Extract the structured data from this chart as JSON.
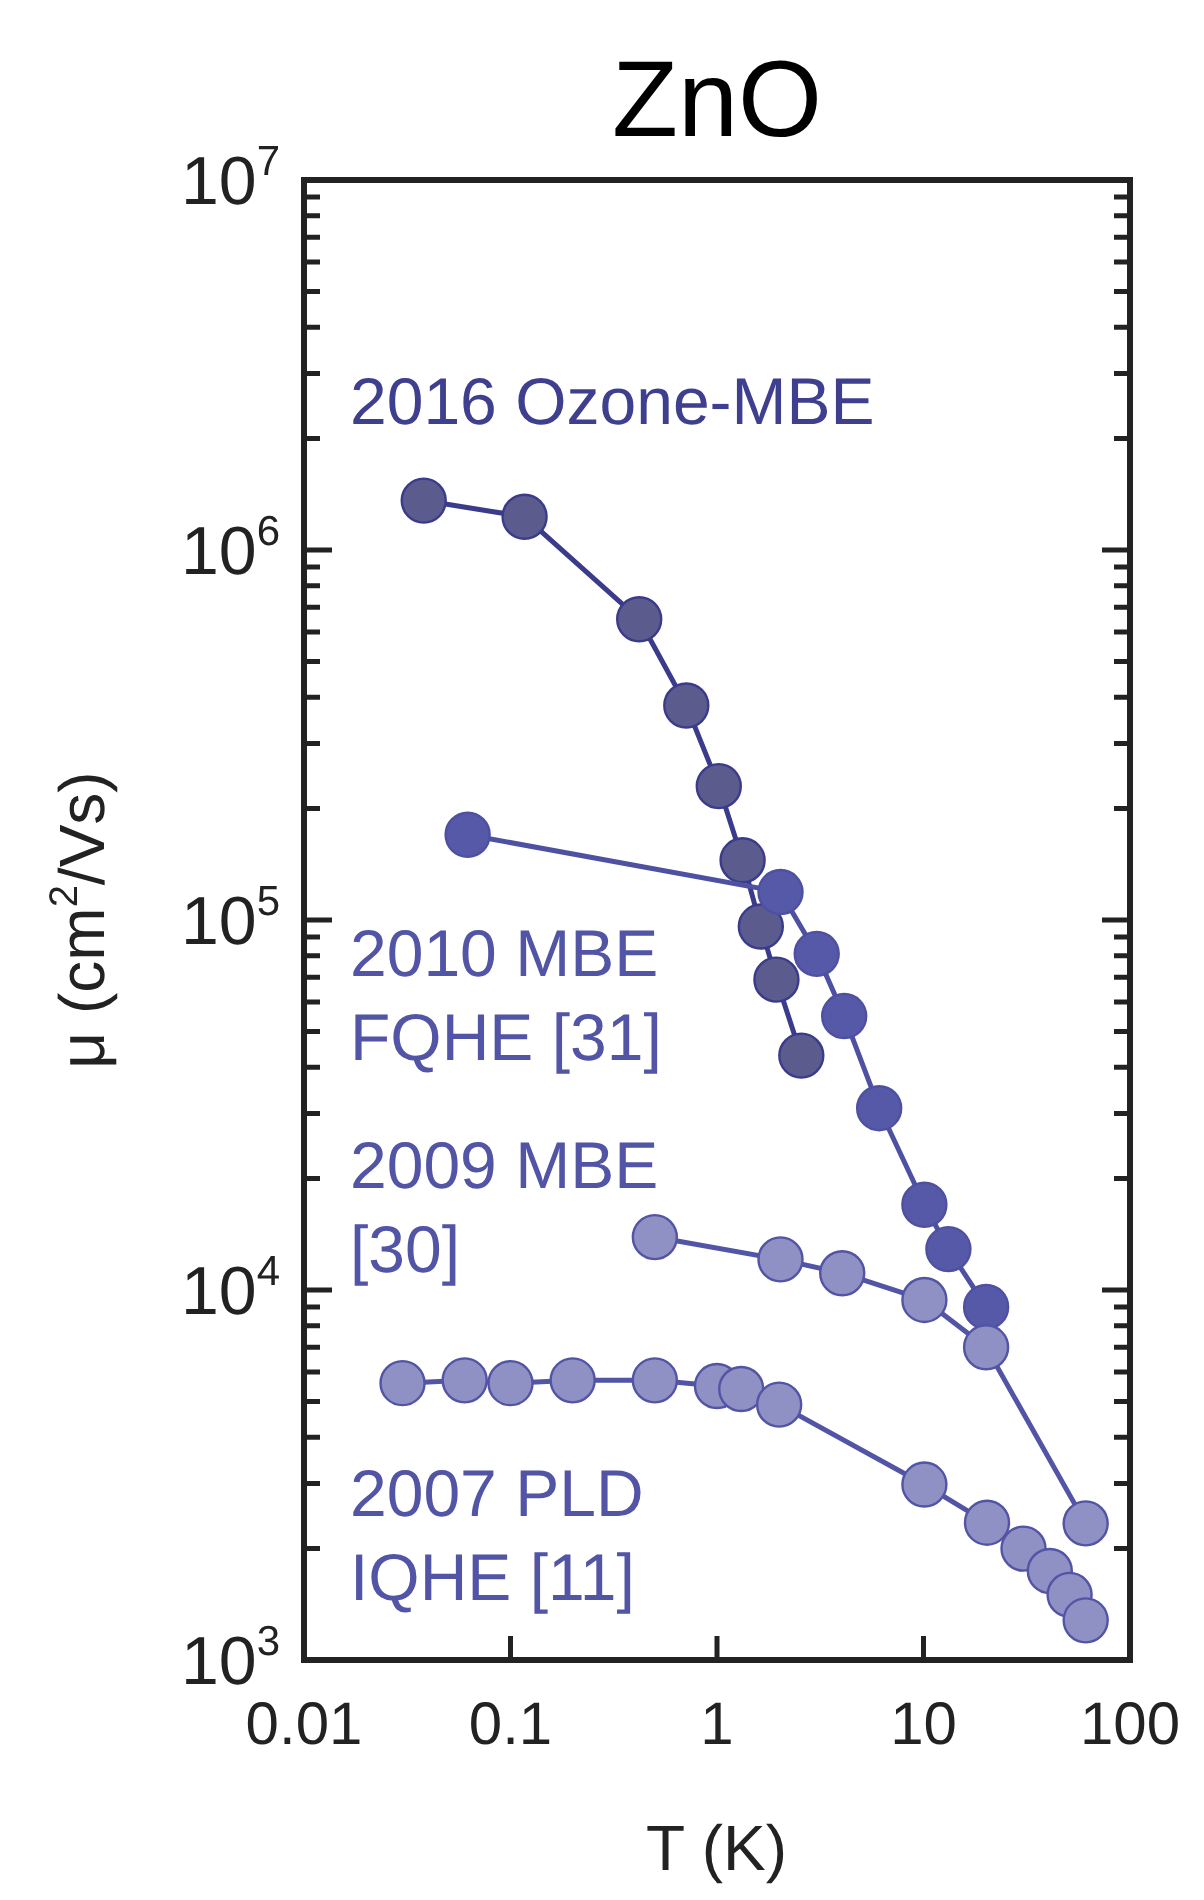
{
  "chart_data": {
    "type": "line",
    "title": "ZnO",
    "xlabel": "T (K)",
    "ylabel": "μ (cm$^{2}$/Vs)",
    "log": "xy",
    "legend": false,
    "grid": false,
    "marker": "circle",
    "line_style": "solid",
    "xlim": [
      0.01,
      100
    ],
    "xticks": [
      0.01,
      0.1,
      1,
      10,
      100
    ],
    "ylim": [
      1000,
      10000000
    ],
    "yticks": [
      {
        "value": 1000,
        "label": "10$^{3}$"
      },
      {
        "value": 2000,
        "label": null
      },
      {
        "value": 3000,
        "label": null
      },
      {
        "value": 4000,
        "label": null
      },
      {
        "value": 5000,
        "label": null
      },
      {
        "value": 6000,
        "label": null
      },
      {
        "value": 7000,
        "label": null
      },
      {
        "value": 8000,
        "label": null
      },
      {
        "value": 9000,
        "label": null
      },
      {
        "value": 10000,
        "label": "10$^{4}$"
      },
      {
        "value": 20000,
        "label": null
      },
      {
        "value": 30000,
        "label": null
      },
      {
        "value": 40000,
        "label": null
      },
      {
        "value": 50000,
        "label": null
      },
      {
        "value": 60000,
        "label": null
      },
      {
        "value": 70000,
        "label": null
      },
      {
        "value": 80000,
        "label": null
      },
      {
        "value": 90000,
        "label": null
      },
      {
        "value": 100000,
        "label": "10$^{5}$"
      },
      {
        "value": 200000,
        "label": null
      },
      {
        "value": 300000,
        "label": null
      },
      {
        "value": 400000,
        "label": null
      },
      {
        "value": 500000,
        "label": null
      },
      {
        "value": 600000,
        "label": null
      },
      {
        "value": 700000,
        "label": null
      },
      {
        "value": 800000,
        "label": null
      },
      {
        "value": 900000,
        "label": null
      },
      {
        "value": 1000000,
        "label": "10$^{6}$"
      },
      {
        "value": 2000000,
        "label": null
      },
      {
        "value": 3000000,
        "label": null
      },
      {
        "value": 4000000,
        "label": null
      },
      {
        "value": 5000000,
        "label": null
      },
      {
        "value": 6000000,
        "label": null
      },
      {
        "value": 7000000,
        "label": null
      },
      {
        "value": 8000000,
        "label": null
      },
      {
        "value": 9000000,
        "label": null
      },
      {
        "value": 10000000,
        "label": "10$^{7}$"
      }
    ],
    "series": [
      {
        "name": "2016 Ozone-MBE",
        "color": "#5b5b8e",
        "x": [
          0.038,
          0.117,
          0.42,
          0.71,
          1.02,
          1.33,
          1.63,
          1.94,
          2.56
        ],
        "values": [
          1360000,
          1230000,
          650000,
          380000,
          230000,
          145000,
          96000,
          69000,
          43000
        ]
      },
      {
        "name": "2010 MBE\nFQHE [31]",
        "color": "#5658a8",
        "x": [
          0.062,
          2.03,
          3.04,
          4.13,
          6.1,
          10.1,
          13.2,
          20.1
        ],
        "values": [
          170000,
          119000,
          81000,
          55000,
          31000,
          17000,
          12900,
          9000
        ]
      },
      {
        "name": "2009 MBE\n[30]",
        "color": "#8f90c4",
        "x": [
          0.5,
          2.03,
          4.04,
          10.1,
          20.1,
          61
        ],
        "values": [
          13900,
          12100,
          11100,
          9400,
          7000,
          2340
        ]
      },
      {
        "name": "2007 PLD\nIQHE [11]",
        "color": "#8f90c4",
        "x": [
          0.03,
          0.06,
          0.1,
          0.2,
          0.5,
          1.0,
          1.31,
          2.0,
          10.1,
          20.3,
          30.5,
          40.9,
          51,
          61
        ],
        "values": [
          5600,
          5700,
          5600,
          5700,
          5700,
          5500,
          5400,
          4900,
          2980,
          2350,
          2000,
          1740,
          1500,
          1280
        ]
      }
    ]
  }
}
